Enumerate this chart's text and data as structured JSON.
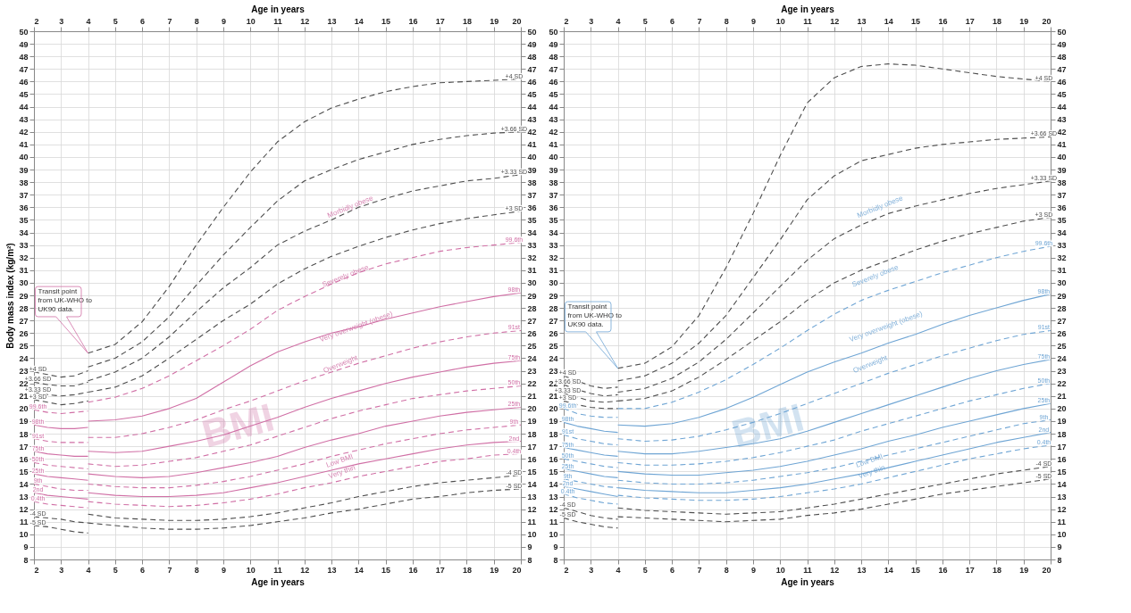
{
  "chart_data": [
    {
      "type": "line",
      "xlabel": "Age in years",
      "x2label": "Age in years",
      "ylabel": "Body mass index (kg/m²)",
      "xlim": [
        2,
        20
      ],
      "xticks": [
        2,
        3,
        4,
        5,
        6,
        7,
        8,
        9,
        10,
        11,
        12,
        13,
        14,
        15,
        16,
        17,
        18,
        19,
        20
      ],
      "x2lim": [
        2,
        20
      ],
      "x2ticks": [
        2,
        3,
        4,
        5,
        6,
        7,
        8,
        9,
        10,
        11,
        12,
        13,
        14,
        15,
        16,
        17,
        18,
        19,
        20
      ],
      "ylim": [
        8,
        50
      ],
      "yticks": [
        8,
        9,
        10,
        11,
        12,
        13,
        14,
        15,
        16,
        17,
        18,
        19,
        20,
        21,
        22,
        23,
        24,
        25,
        26,
        27,
        28,
        29,
        30,
        31,
        32,
        33,
        34,
        35,
        36,
        37,
        38,
        39,
        40,
        41,
        42,
        43,
        44,
        45,
        46,
        47,
        48,
        49,
        50
      ],
      "y2lim": [
        8,
        50
      ],
      "y2ticks": [
        8,
        9,
        10,
        11,
        12,
        13,
        14,
        15,
        16,
        17,
        18,
        19,
        20,
        21,
        22,
        23,
        24,
        25,
        26,
        27,
        28,
        29,
        30,
        31,
        32,
        33,
        34,
        35,
        36,
        37,
        38,
        39,
        40,
        41,
        42,
        43,
        44,
        45,
        46,
        47,
        48,
        49,
        50
      ],
      "grid": true,
      "x": [
        2,
        2.5,
        3,
        3.5,
        4,
        4,
        5,
        6,
        7,
        8,
        9,
        10,
        11,
        12,
        13,
        14,
        15,
        16,
        17,
        18,
        19,
        20
      ],
      "annotations": [
        "Transit point from UK-WHO to UK90 data.",
        "Morbidly obese",
        "Severely obese",
        "Very overweight (obese)",
        "Overweight",
        "Low BMI",
        "Very thin",
        "BMI"
      ],
      "series": [
        {
          "name": "+4 SD",
          "color": "#4d4d4d",
          "line_style": "dashed",
          "values": [
            22.9,
            22.7,
            22.5,
            22.6,
            23.0,
            24.4,
            25.1,
            26.9,
            29.7,
            33.0,
            36.0,
            38.8,
            41.2,
            42.8,
            43.9,
            44.6,
            45.2,
            45.6,
            45.9,
            46.0,
            46.1,
            46.2
          ]
        },
        {
          "name": "+3.66 SD",
          "color": "#4d4d4d",
          "line_style": "dashed",
          "values": [
            22.1,
            21.9,
            21.8,
            21.8,
            22.1,
            23.3,
            24.0,
            25.3,
            27.3,
            29.8,
            32.2,
            34.4,
            36.5,
            38.1,
            39.0,
            39.8,
            40.4,
            41.0,
            41.4,
            41.7,
            41.9,
            42.0
          ]
        },
        {
          "name": "+3.33 SD",
          "color": "#4d4d4d",
          "line_style": "dashed",
          "values": [
            21.3,
            21.1,
            21.0,
            21.1,
            21.3,
            22.2,
            22.9,
            24.0,
            25.7,
            27.7,
            29.6,
            31.2,
            33.0,
            34.1,
            35.0,
            36.0,
            36.7,
            37.3,
            37.7,
            38.1,
            38.3,
            38.6
          ]
        },
        {
          "name": "+3 SD",
          "color": "#4d4d4d",
          "line_style": "dashed",
          "values": [
            20.7,
            20.5,
            20.3,
            20.4,
            20.6,
            21.3,
            21.7,
            22.6,
            24.0,
            25.5,
            27.0,
            28.3,
            29.9,
            31.1,
            32.1,
            32.9,
            33.6,
            34.2,
            34.7,
            35.1,
            35.4,
            35.7
          ]
        },
        {
          "name": "99.6th",
          "color": "#d06fa5",
          "line_style": "dashed",
          "values": [
            19.9,
            19.7,
            19.6,
            19.7,
            19.8,
            20.5,
            20.9,
            21.6,
            22.6,
            23.8,
            25.0,
            26.3,
            27.8,
            28.9,
            29.9,
            30.8,
            31.5,
            32.0,
            32.5,
            32.8,
            33.0,
            33.2
          ]
        },
        {
          "name": "98th",
          "color": "#d06fa5",
          "line_style": "solid",
          "values": [
            18.7,
            18.5,
            18.4,
            18.4,
            18.5,
            19.0,
            19.1,
            19.4,
            20.0,
            20.8,
            22.1,
            23.4,
            24.5,
            25.3,
            26.0,
            26.5,
            27.1,
            27.6,
            28.1,
            28.5,
            28.9,
            29.2
          ]
        },
        {
          "name": "91st",
          "color": "#d06fa5",
          "line_style": "dashed",
          "values": [
            17.6,
            17.4,
            17.3,
            17.3,
            17.3,
            17.7,
            17.7,
            18.0,
            18.5,
            19.1,
            19.9,
            20.6,
            21.4,
            22.2,
            22.9,
            23.6,
            24.2,
            24.8,
            25.3,
            25.7,
            26.0,
            26.2
          ]
        },
        {
          "name": "75th",
          "color": "#d06fa5",
          "line_style": "solid",
          "values": [
            16.6,
            16.4,
            16.3,
            16.2,
            16.2,
            16.6,
            16.5,
            16.6,
            17.0,
            17.4,
            17.9,
            18.6,
            19.3,
            20.1,
            20.8,
            21.4,
            22.0,
            22.5,
            22.9,
            23.3,
            23.6,
            23.8
          ]
        },
        {
          "name": "50th",
          "color": "#d06fa5",
          "line_style": "dashed",
          "values": [
            15.7,
            15.5,
            15.4,
            15.3,
            15.2,
            15.6,
            15.4,
            15.5,
            15.8,
            16.1,
            16.6,
            17.1,
            17.8,
            18.5,
            19.2,
            19.8,
            20.3,
            20.8,
            21.1,
            21.4,
            21.6,
            21.8
          ]
        },
        {
          "name": "25th",
          "color": "#d06fa5",
          "line_style": "solid",
          "values": [
            14.8,
            14.6,
            14.5,
            14.4,
            14.3,
            14.8,
            14.6,
            14.5,
            14.6,
            14.9,
            15.3,
            15.7,
            16.2,
            16.9,
            17.5,
            18.0,
            18.6,
            19.0,
            19.4,
            19.7,
            19.9,
            20.1
          ]
        },
        {
          "name": "9th",
          "color": "#d06fa5",
          "line_style": "dashed",
          "values": [
            14.0,
            13.8,
            13.6,
            13.5,
            13.5,
            14.0,
            13.8,
            13.7,
            13.7,
            13.9,
            14.2,
            14.6,
            15.1,
            15.6,
            16.2,
            16.7,
            17.2,
            17.6,
            18.0,
            18.3,
            18.5,
            18.7
          ]
        },
        {
          "name": "2nd",
          "color": "#d06fa5",
          "line_style": "solid",
          "values": [
            13.3,
            13.1,
            13.0,
            12.9,
            12.8,
            13.3,
            13.1,
            13.0,
            13.0,
            13.1,
            13.3,
            13.7,
            14.1,
            14.6,
            15.1,
            15.6,
            16.0,
            16.4,
            16.8,
            17.1,
            17.3,
            17.4
          ]
        },
        {
          "name": "0.4th",
          "color": "#d06fa5",
          "line_style": "dashed",
          "values": [
            12.6,
            12.4,
            12.3,
            12.2,
            12.1,
            12.6,
            12.4,
            12.3,
            12.2,
            12.3,
            12.5,
            12.8,
            13.2,
            13.7,
            14.1,
            14.6,
            15.0,
            15.4,
            15.8,
            16.0,
            16.3,
            16.4
          ]
        },
        {
          "name": "-4 SD",
          "color": "#4d4d4d",
          "line_style": "dashed",
          "values": [
            11.4,
            11.3,
            11.2,
            11.0,
            10.9,
            11.6,
            11.3,
            11.2,
            11.1,
            11.1,
            11.2,
            11.4,
            11.7,
            12.1,
            12.5,
            13.0,
            13.4,
            13.8,
            14.1,
            14.3,
            14.5,
            14.7
          ]
        },
        {
          "name": "-5 SD",
          "color": "#4d4d4d",
          "line_style": "dashed",
          "values": [
            10.7,
            10.6,
            10.4,
            10.2,
            10.1,
            10.9,
            10.7,
            10.5,
            10.4,
            10.4,
            10.5,
            10.7,
            11.0,
            11.3,
            11.7,
            12.0,
            12.4,
            12.8,
            13.0,
            13.3,
            13.5,
            13.6
          ]
        }
      ]
    },
    {
      "type": "line",
      "xlabel": "Age in years",
      "x2label": "Age in years",
      "xlim": [
        2,
        20
      ],
      "xticks": [
        2,
        3,
        4,
        5,
        6,
        7,
        8,
        9,
        10,
        11,
        12,
        13,
        14,
        15,
        16,
        17,
        18,
        19,
        20
      ],
      "x2lim": [
        2,
        20
      ],
      "x2ticks": [
        2,
        3,
        4,
        5,
        6,
        7,
        8,
        9,
        10,
        11,
        12,
        13,
        14,
        15,
        16,
        17,
        18,
        19,
        20
      ],
      "ylim": [
        8,
        50
      ],
      "yticks": [
        8,
        9,
        10,
        11,
        12,
        13,
        14,
        15,
        16,
        17,
        18,
        19,
        20,
        21,
        22,
        23,
        24,
        25,
        26,
        27,
        28,
        29,
        30,
        31,
        32,
        33,
        34,
        35,
        36,
        37,
        38,
        39,
        40,
        41,
        42,
        43,
        44,
        45,
        46,
        47,
        48,
        49,
        50
      ],
      "y2lim": [
        8,
        50
      ],
      "y2ticks": [
        8,
        9,
        10,
        11,
        12,
        13,
        14,
        15,
        16,
        17,
        18,
        19,
        20,
        21,
        22,
        23,
        24,
        25,
        26,
        27,
        28,
        29,
        30,
        31,
        32,
        33,
        34,
        35,
        36,
        37,
        38,
        39,
        40,
        41,
        42,
        43,
        44,
        45,
        46,
        47,
        48,
        49,
        50
      ],
      "grid": true,
      "x": [
        2,
        2.5,
        3,
        3.5,
        4,
        4,
        5,
        6,
        7,
        8,
        9,
        10,
        11,
        12,
        13,
        14,
        15,
        16,
        17,
        18,
        19,
        20
      ],
      "annotations": [
        "Transit point from UK-WHO to UK90 data.",
        "Morbidly obese",
        "Severely obese",
        "Very overweight (obese)",
        "Overweight",
        "Low BMI",
        "Very thin",
        "BMI"
      ],
      "series": [
        {
          "name": "+4 SD",
          "color": "#4d4d4d",
          "line_style": "dashed",
          "values": [
            22.6,
            22.2,
            21.8,
            21.6,
            21.7,
            23.2,
            23.6,
            24.9,
            27.4,
            31.2,
            35.5,
            40.1,
            44.3,
            46.3,
            47.2,
            47.4,
            47.3,
            47.0,
            46.7,
            46.4,
            46.2,
            46.0
          ]
        },
        {
          "name": "+3.66 SD",
          "color": "#4d4d4d",
          "line_style": "dashed",
          "values": [
            21.9,
            21.5,
            21.2,
            21.0,
            21.1,
            22.2,
            22.6,
            23.6,
            25.2,
            27.4,
            30.4,
            33.4,
            36.6,
            38.5,
            39.7,
            40.2,
            40.7,
            41.0,
            41.2,
            41.4,
            41.5,
            41.6
          ]
        },
        {
          "name": "+3.33 SD",
          "color": "#4d4d4d",
          "line_style": "dashed",
          "values": [
            21.2,
            20.9,
            20.6,
            20.5,
            20.6,
            21.3,
            21.6,
            22.4,
            23.7,
            25.5,
            27.6,
            29.7,
            31.8,
            33.5,
            34.6,
            35.5,
            36.1,
            36.6,
            37.1,
            37.5,
            37.8,
            38.1
          ]
        },
        {
          "name": "+3 SD",
          "color": "#4d4d4d",
          "line_style": "dashed",
          "values": [
            20.6,
            20.3,
            20.1,
            20.0,
            20.0,
            20.6,
            20.8,
            21.4,
            22.5,
            23.9,
            25.4,
            26.9,
            28.6,
            30.0,
            31.0,
            31.8,
            32.6,
            33.3,
            33.9,
            34.4,
            34.9,
            35.2
          ]
        },
        {
          "name": "99.6th",
          "color": "#6fa5d4",
          "line_style": "dashed",
          "values": [
            20.0,
            19.6,
            19.4,
            19.3,
            19.3,
            20.0,
            20.0,
            20.5,
            21.3,
            22.3,
            23.5,
            24.8,
            26.2,
            27.5,
            28.6,
            29.4,
            30.1,
            30.8,
            31.4,
            32.0,
            32.5,
            32.9
          ]
        },
        {
          "name": "98th",
          "color": "#6fa5d4",
          "line_style": "solid",
          "values": [
            18.9,
            18.6,
            18.4,
            18.2,
            18.1,
            18.7,
            18.6,
            18.8,
            19.3,
            20.0,
            20.9,
            21.9,
            22.9,
            23.7,
            24.4,
            25.2,
            25.9,
            26.7,
            27.4,
            28.0,
            28.6,
            29.1
          ]
        },
        {
          "name": "91st",
          "color": "#6fa5d4",
          "line_style": "dashed",
          "values": [
            17.9,
            17.6,
            17.4,
            17.2,
            17.1,
            17.6,
            17.4,
            17.5,
            17.8,
            18.3,
            18.9,
            19.6,
            20.4,
            21.2,
            22.0,
            22.8,
            23.5,
            24.2,
            24.8,
            25.4,
            25.9,
            26.2
          ]
        },
        {
          "name": "75th",
          "color": "#6fa5d4",
          "line_style": "solid",
          "values": [
            16.9,
            16.7,
            16.5,
            16.3,
            16.2,
            16.6,
            16.4,
            16.4,
            16.6,
            16.9,
            17.2,
            17.6,
            18.2,
            18.9,
            19.6,
            20.3,
            21.0,
            21.7,
            22.4,
            23.0,
            23.5,
            23.9
          ]
        },
        {
          "name": "50th",
          "color": "#6fa5d4",
          "line_style": "dashed",
          "values": [
            16.0,
            15.8,
            15.6,
            15.4,
            15.3,
            15.7,
            15.5,
            15.5,
            15.6,
            15.8,
            16.1,
            16.5,
            17.0,
            17.5,
            18.2,
            18.8,
            19.4,
            20.0,
            20.6,
            21.1,
            21.6,
            22.0
          ]
        },
        {
          "name": "25th",
          "color": "#6fa5d4",
          "line_style": "solid",
          "values": [
            15.2,
            15.0,
            14.8,
            14.6,
            14.5,
            15.0,
            14.8,
            14.7,
            14.7,
            14.9,
            15.1,
            15.4,
            15.8,
            16.3,
            16.8,
            17.4,
            17.9,
            18.5,
            19.0,
            19.5,
            20.0,
            20.4
          ]
        },
        {
          "name": "9th",
          "color": "#6fa5d4",
          "line_style": "dashed",
          "values": [
            14.4,
            14.2,
            14.0,
            13.8,
            13.7,
            14.3,
            14.1,
            14.0,
            14.0,
            14.1,
            14.3,
            14.6,
            14.9,
            15.3,
            15.8,
            16.3,
            16.8,
            17.3,
            17.8,
            18.3,
            18.8,
            19.1
          ]
        },
        {
          "name": "2nd",
          "color": "#6fa5d4",
          "line_style": "solid",
          "values": [
            13.8,
            13.6,
            13.4,
            13.2,
            13.0,
            13.7,
            13.5,
            13.4,
            13.3,
            13.3,
            13.5,
            13.7,
            14.0,
            14.4,
            14.8,
            15.3,
            15.8,
            16.3,
            16.8,
            17.3,
            17.7,
            18.1
          ]
        },
        {
          "name": "0.4th",
          "color": "#6fa5d4",
          "line_style": "dashed",
          "values": [
            13.2,
            12.9,
            12.7,
            12.5,
            12.4,
            13.1,
            12.9,
            12.8,
            12.7,
            12.7,
            12.8,
            13.0,
            13.3,
            13.6,
            14.0,
            14.5,
            15.0,
            15.5,
            16.0,
            16.4,
            16.8,
            17.1
          ]
        },
        {
          "name": "-4 SD",
          "color": "#4d4d4d",
          "line_style": "dashed",
          "values": [
            12.1,
            11.8,
            11.5,
            11.3,
            11.2,
            12.1,
            11.9,
            11.8,
            11.7,
            11.6,
            11.7,
            11.8,
            12.1,
            12.4,
            12.8,
            13.2,
            13.6,
            14.0,
            14.4,
            14.8,
            15.1,
            15.4
          ]
        },
        {
          "name": "-5 SD",
          "color": "#4d4d4d",
          "line_style": "dashed",
          "values": [
            11.3,
            11.0,
            10.8,
            10.6,
            10.5,
            11.4,
            11.3,
            11.2,
            11.1,
            11.0,
            11.1,
            11.2,
            11.5,
            11.7,
            12.0,
            12.4,
            12.8,
            13.2,
            13.5,
            13.8,
            14.1,
            14.4
          ]
        }
      ]
    }
  ]
}
